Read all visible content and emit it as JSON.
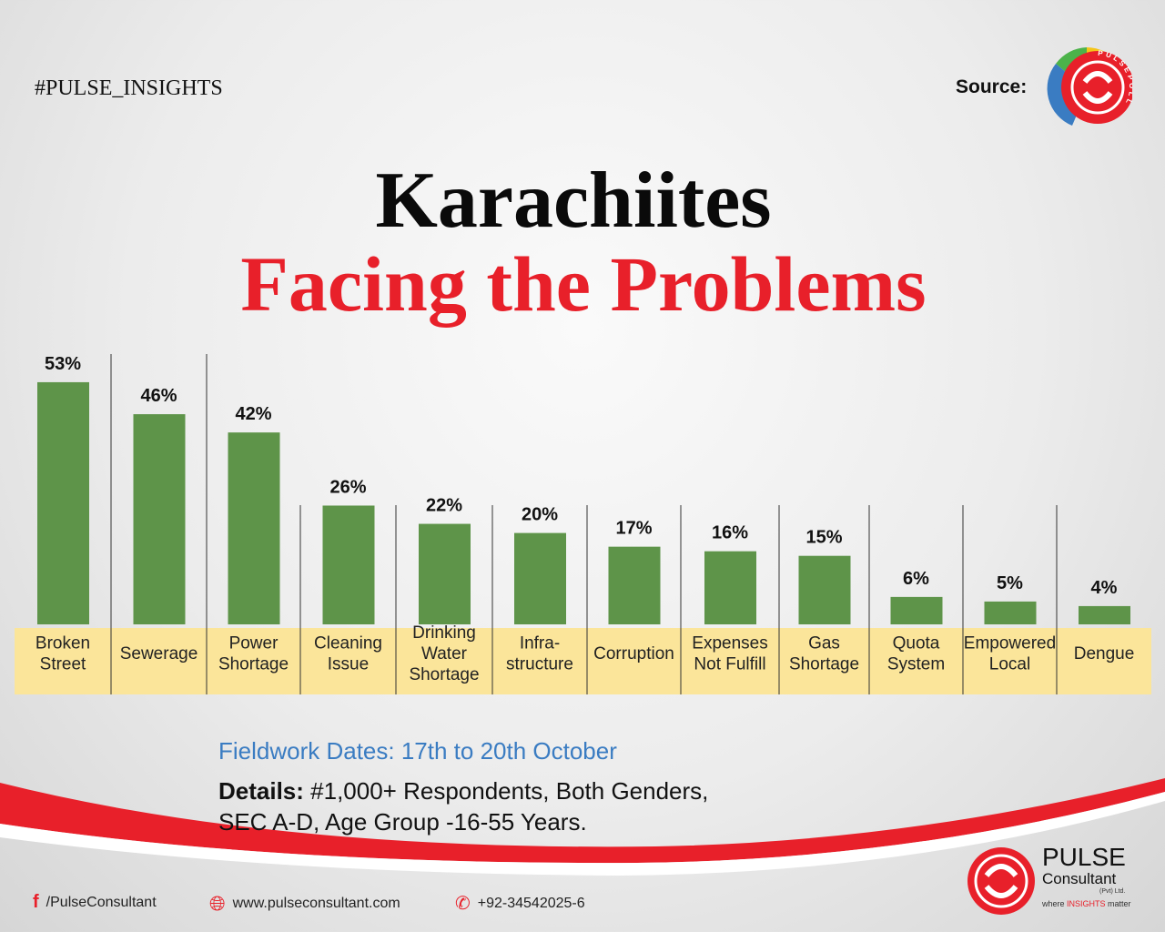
{
  "header": {
    "hashtag": "#PULSE_INSIGHTS",
    "source_label": "Source:",
    "source_logo_text": "PULSEPOLL"
  },
  "title": {
    "line1": "Karachiites",
    "line2": "Facing the Problems"
  },
  "chart_data": {
    "type": "bar",
    "title": "Karachiites Facing the Problems",
    "categories": [
      "Broken Street",
      "Sewerage",
      "Power Shortage",
      "Cleaning Issue",
      "Drinking Water Shortage",
      "Infra-structure",
      "Corruption",
      "Expenses Not Fulfill",
      "Gas Shortage",
      "Quota System",
      "Empowered Local",
      "Dengue"
    ],
    "label_lines": [
      [
        "Broken",
        "Street"
      ],
      [
        "Sewerage"
      ],
      [
        "Power",
        "Shortage"
      ],
      [
        "Cleaning",
        "Issue"
      ],
      [
        "Drinking",
        "Water",
        "Shortage"
      ],
      [
        "Infra-",
        "structure"
      ],
      [
        "Corruption"
      ],
      [
        "Expenses",
        "Not Fulfill"
      ],
      [
        "Gas",
        "Shortage"
      ],
      [
        "Quota",
        "System"
      ],
      [
        "Empowered",
        "Local"
      ],
      [
        "Dengue"
      ]
    ],
    "values": [
      53,
      46,
      42,
      26,
      22,
      20,
      17,
      16,
      15,
      6,
      5,
      4
    ],
    "data_labels": [
      "53%",
      "46%",
      "42%",
      "26%",
      "22%",
      "20%",
      "17%",
      "16%",
      "15%",
      "6%",
      "5%",
      "4%"
    ],
    "unit": "%",
    "ylim": [
      0,
      60
    ],
    "grid": false,
    "bar_color": "#5e9449",
    "label_bg": "#fbe59a"
  },
  "footer": {
    "fieldwork": "Fieldwork Dates: 17th to 20th October",
    "details_label": "Details:",
    "details_text": " #1,000+ Respondents, Both Genders,",
    "details_line2": "SEC A-D, Age Group -16-55 Years.",
    "facebook": "/PulseConsultant",
    "website": "www.pulseconsultant.com",
    "phone": "+92-34542025-6"
  },
  "brand": {
    "name": "PULSE",
    "sub": "Consultant",
    "pvt": "(Pvt) Ltd.",
    "tag_pre": "where ",
    "tag_mid": "INSIGHTS",
    "tag_post": " matter"
  },
  "colors": {
    "red": "#e8202a",
    "green": "#5e9449",
    "yellow": "#fbe59a",
    "blue": "#3a7cc2"
  }
}
